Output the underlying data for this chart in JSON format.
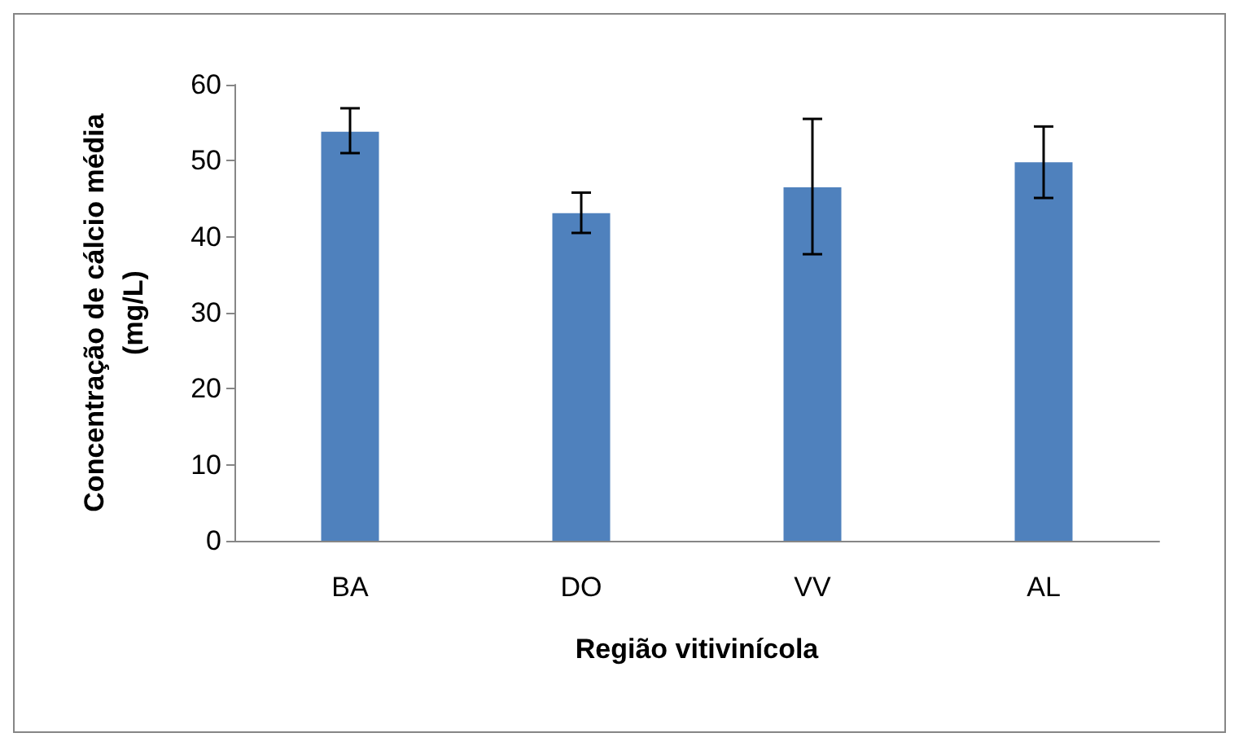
{
  "chart_data": {
    "type": "bar",
    "xlabel": "Região vitivinícola",
    "ylabel": "Concentração de cálcio média\n(mg/L)",
    "categories": [
      "BA",
      "DO",
      "VV",
      "AL"
    ],
    "values": [
      53.8,
      43.1,
      46.5,
      49.8
    ],
    "errors": [
      [
        51.0,
        56.9
      ],
      [
        40.5,
        45.8
      ],
      [
        37.7,
        55.5
      ],
      [
        45.1,
        54.5
      ]
    ],
    "color": "#4f81bd",
    "ylim": [
      0,
      60
    ],
    "yticks": [
      0,
      10,
      20,
      30,
      40,
      50,
      60
    ],
    "grid": false
  }
}
